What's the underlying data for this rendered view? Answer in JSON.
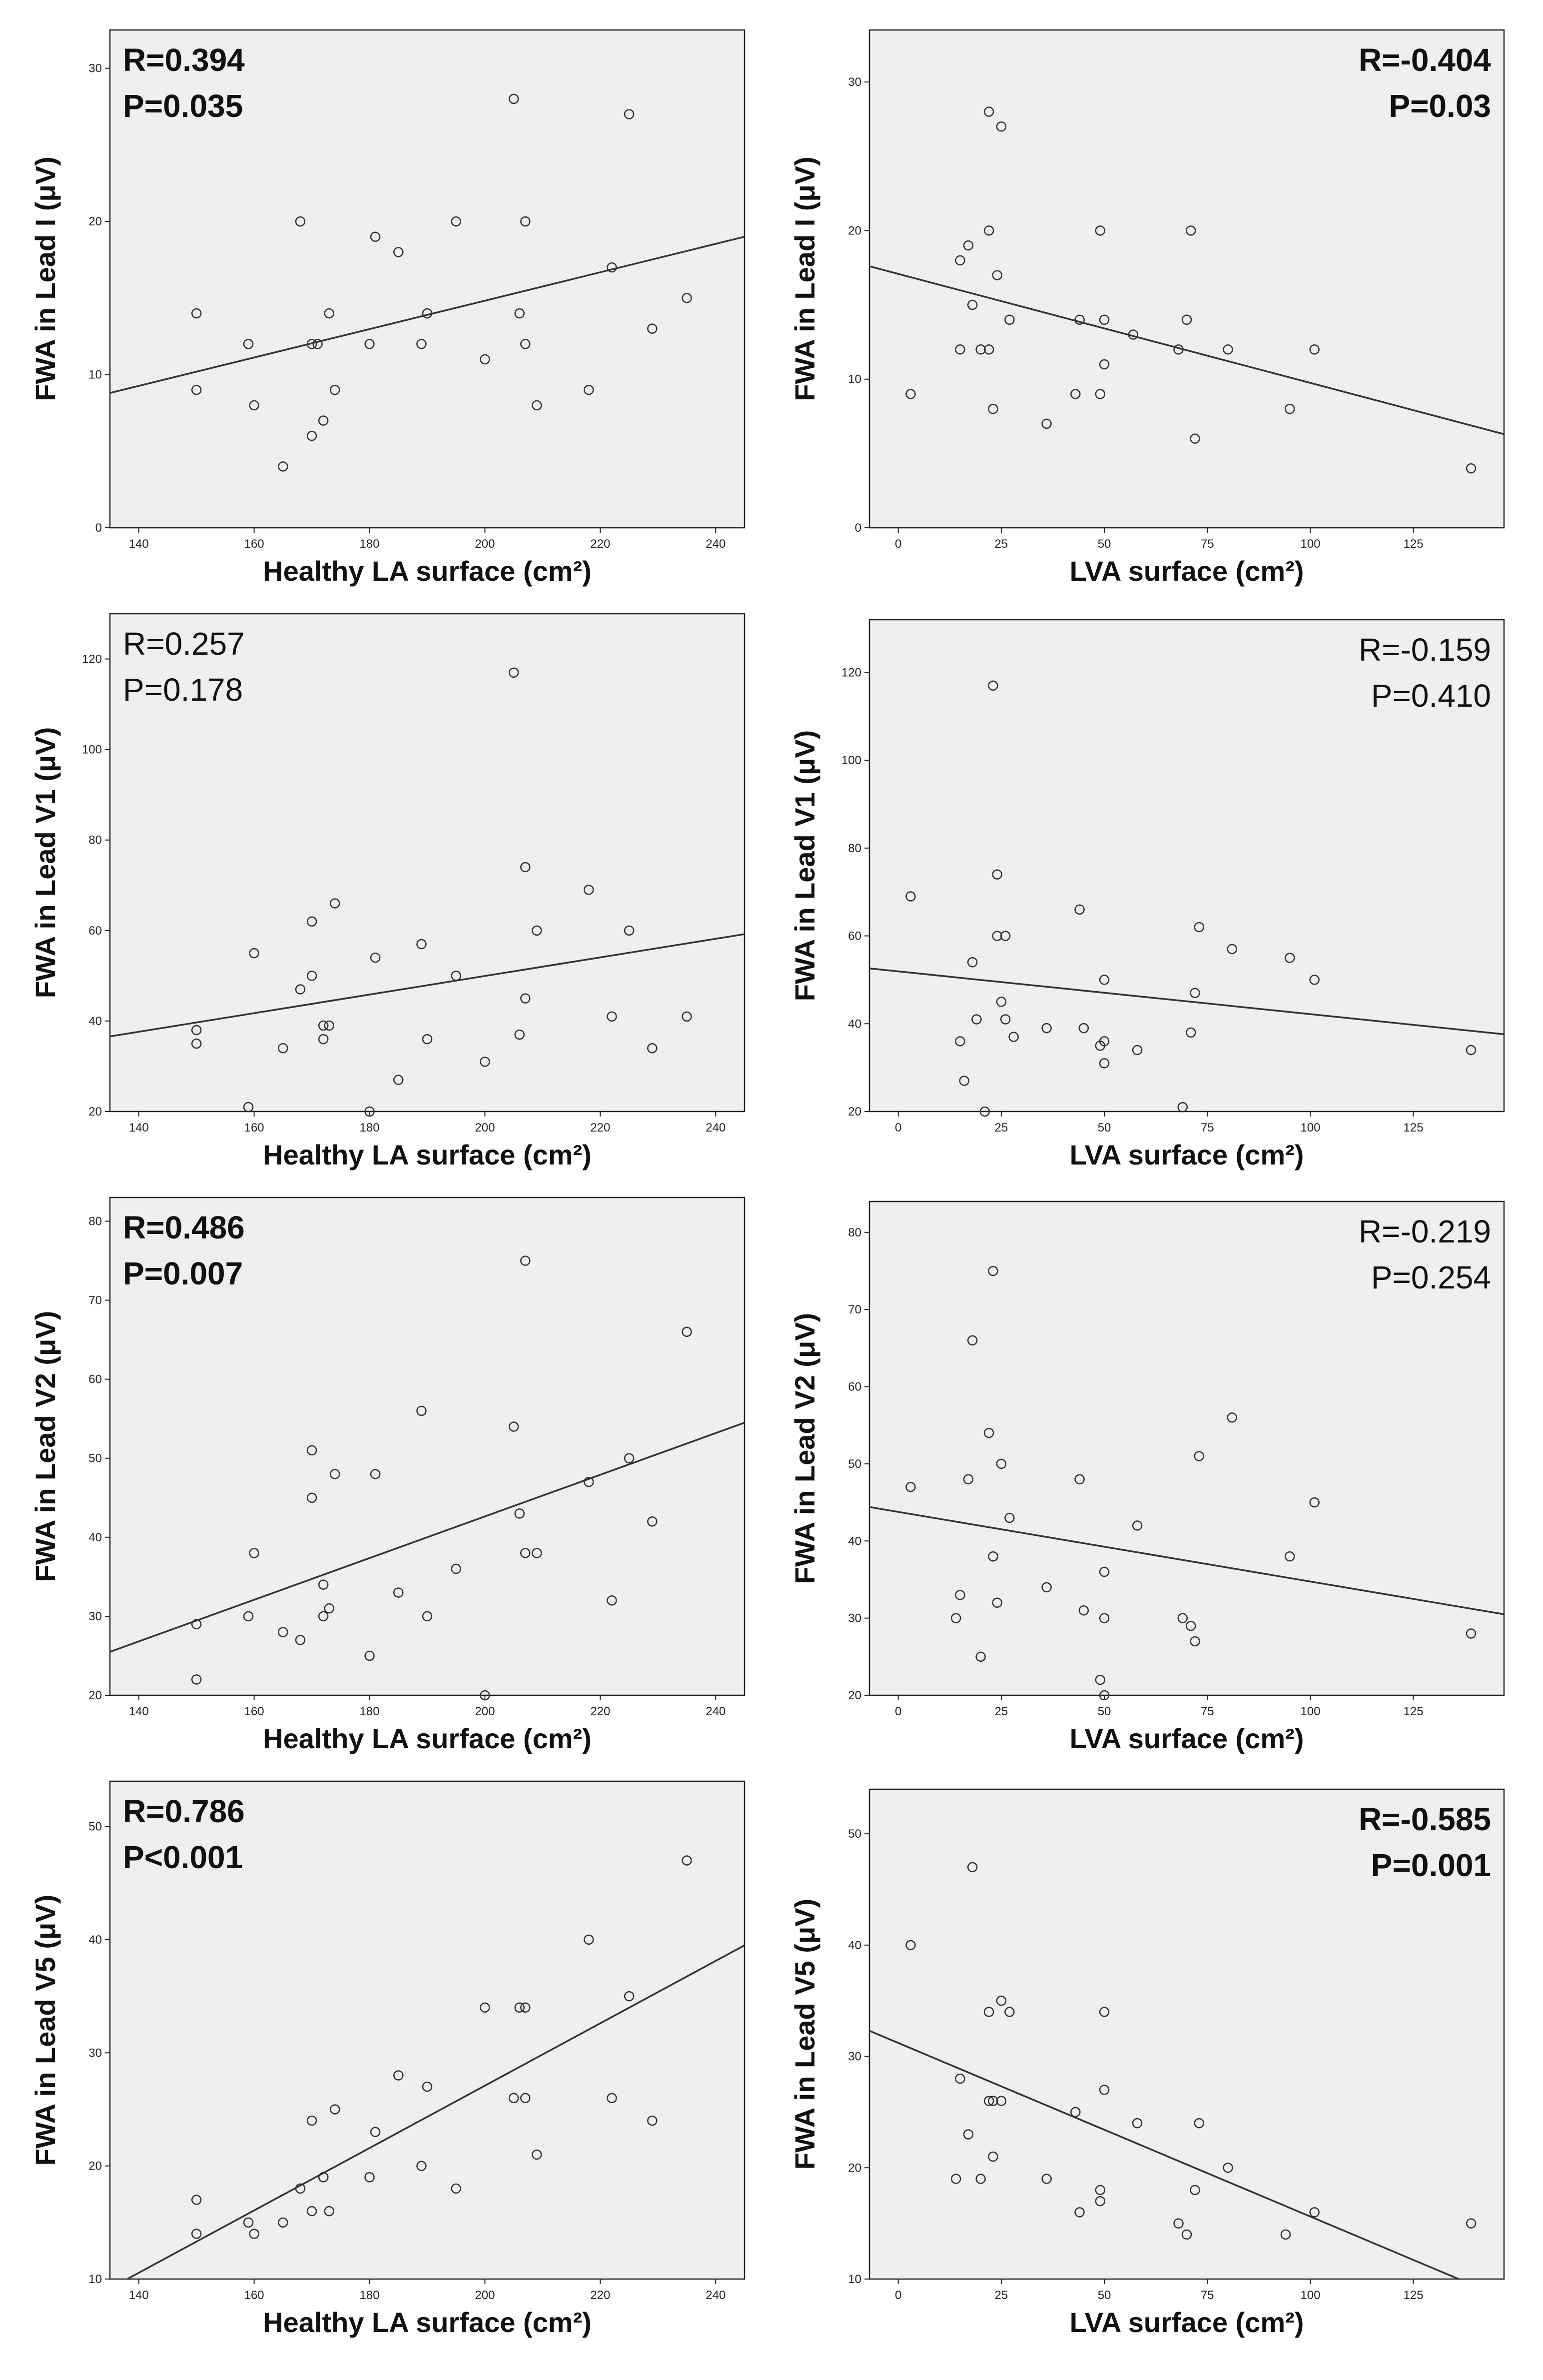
{
  "chart_data": [
    {
      "type": "scatter",
      "xlabel": "Healthy LA surface (cm²)",
      "ylabel": "FWA in Lead I (μV)",
      "stat": {
        "r": "R=0.394",
        "p": "P=0.035",
        "bold": true,
        "align": "left"
      },
      "xlim": [
        135,
        245
      ],
      "ylim": [
        0,
        32.5
      ],
      "xticks": [
        140,
        160,
        180,
        200,
        220,
        240
      ],
      "yticks": [
        0,
        10,
        20,
        30
      ],
      "fit": [
        [
          135,
          8.8
        ],
        [
          245,
          19
        ]
      ],
      "points": [
        [
          150,
          14
        ],
        [
          150,
          9
        ],
        [
          159,
          12
        ],
        [
          160,
          8
        ],
        [
          165,
          4
        ],
        [
          168,
          20
        ],
        [
          170,
          12
        ],
        [
          170,
          6
        ],
        [
          171,
          12
        ],
        [
          172,
          7
        ],
        [
          173,
          14
        ],
        [
          174,
          9
        ],
        [
          180,
          12
        ],
        [
          181,
          19
        ],
        [
          185,
          18
        ],
        [
          189,
          12
        ],
        [
          190,
          14
        ],
        [
          195,
          20
        ],
        [
          200,
          11
        ],
        [
          205,
          28
        ],
        [
          206,
          14
        ],
        [
          207,
          20
        ],
        [
          207,
          12
        ],
        [
          209,
          8
        ],
        [
          218,
          9
        ],
        [
          222,
          17
        ],
        [
          225,
          27
        ],
        [
          229,
          13
        ],
        [
          235,
          15
        ]
      ]
    },
    {
      "type": "scatter",
      "xlabel": "LVA surface (cm²)",
      "ylabel": "FWA in Lead I (μV)",
      "stat": {
        "r": "R=-0.404",
        "p": "P=0.03",
        "bold": true,
        "align": "right"
      },
      "xlim": [
        -7,
        147
      ],
      "ylim": [
        0,
        33.5
      ],
      "xticks": [
        0,
        25,
        50,
        75,
        100,
        125
      ],
      "yticks": [
        0,
        10,
        20,
        30
      ],
      "fit": [
        [
          -7,
          17.6
        ],
        [
          147,
          6.3
        ]
      ],
      "points": [
        [
          3,
          9
        ],
        [
          15,
          18
        ],
        [
          15,
          12
        ],
        [
          17,
          19
        ],
        [
          18,
          15
        ],
        [
          20,
          12
        ],
        [
          22,
          28
        ],
        [
          22,
          20
        ],
        [
          22,
          12
        ],
        [
          23,
          8
        ],
        [
          24,
          17
        ],
        [
          25,
          27
        ],
        [
          27,
          14
        ],
        [
          36,
          7
        ],
        [
          43,
          9
        ],
        [
          44,
          14
        ],
        [
          49,
          20
        ],
        [
          49,
          9
        ],
        [
          50,
          14
        ],
        [
          50,
          11
        ],
        [
          57,
          13
        ],
        [
          68,
          12
        ],
        [
          70,
          14
        ],
        [
          71,
          20
        ],
        [
          72,
          6
        ],
        [
          80,
          12
        ],
        [
          95,
          8
        ],
        [
          101,
          12
        ],
        [
          139,
          4
        ]
      ]
    },
    {
      "type": "scatter",
      "xlabel": "Healthy LA surface (cm²)",
      "ylabel": "FWA in Lead V1 (μV)",
      "stat": {
        "r": "R=0.257",
        "p": "P=0.178",
        "bold": false,
        "align": "left"
      },
      "xlim": [
        135,
        245
      ],
      "ylim": [
        20,
        130
      ],
      "xticks": [
        140,
        160,
        180,
        200,
        220,
        240
      ],
      "yticks": [
        20,
        40,
        60,
        80,
        100,
        120
      ],
      "fit": [
        [
          135,
          36.6
        ],
        [
          245,
          59.2
        ]
      ],
      "points": [
        [
          150,
          38
        ],
        [
          150,
          35
        ],
        [
          159,
          21
        ],
        [
          160,
          55
        ],
        [
          165,
          34
        ],
        [
          168,
          47
        ],
        [
          170,
          62
        ],
        [
          170,
          50
        ],
        [
          172,
          36
        ],
        [
          172,
          39
        ],
        [
          173,
          39
        ],
        [
          174,
          66
        ],
        [
          180,
          20
        ],
        [
          181,
          54
        ],
        [
          185,
          27
        ],
        [
          189,
          57
        ],
        [
          190,
          36
        ],
        [
          195,
          50
        ],
        [
          200,
          31
        ],
        [
          205,
          117
        ],
        [
          206,
          37
        ],
        [
          207,
          74
        ],
        [
          207,
          45
        ],
        [
          209,
          60
        ],
        [
          218,
          69
        ],
        [
          222,
          41
        ],
        [
          225,
          60
        ],
        [
          229,
          34
        ],
        [
          235,
          41
        ]
      ]
    },
    {
      "type": "scatter",
      "xlabel": "LVA surface (cm²)",
      "ylabel": "FWA in Lead V1 (μV)",
      "stat": {
        "r": "R=-0.159",
        "p": "P=0.410",
        "bold": false,
        "align": "right"
      },
      "xlim": [
        -7,
        147
      ],
      "ylim": [
        20,
        132
      ],
      "xticks": [
        0,
        25,
        50,
        75,
        100,
        125
      ],
      "yticks": [
        20,
        40,
        60,
        80,
        100,
        120
      ],
      "fit": [
        [
          -7,
          52.6
        ],
        [
          147,
          37.6
        ]
      ],
      "points": [
        [
          3,
          69
        ],
        [
          15,
          36
        ],
        [
          16,
          27
        ],
        [
          18,
          54
        ],
        [
          19,
          41
        ],
        [
          21,
          20
        ],
        [
          23,
          117
        ],
        [
          24,
          74
        ],
        [
          24,
          60
        ],
        [
          25,
          45
        ],
        [
          26,
          60
        ],
        [
          26,
          41
        ],
        [
          28,
          37
        ],
        [
          36,
          39
        ],
        [
          44,
          66
        ],
        [
          45,
          39
        ],
        [
          49,
          35
        ],
        [
          50,
          50
        ],
        [
          50,
          36
        ],
        [
          50,
          31
        ],
        [
          58,
          34
        ],
        [
          69,
          21
        ],
        [
          71,
          38
        ],
        [
          72,
          47
        ],
        [
          73,
          62
        ],
        [
          81,
          57
        ],
        [
          95,
          55
        ],
        [
          101,
          50
        ],
        [
          139,
          34
        ]
      ]
    },
    {
      "type": "scatter",
      "xlabel": "Healthy LA surface (cm²)",
      "ylabel": "FWA in Lead V2 (μV)",
      "stat": {
        "r": "R=0.486",
        "p": "P=0.007",
        "bold": true,
        "align": "left"
      },
      "xlim": [
        135,
        245
      ],
      "ylim": [
        20,
        83
      ],
      "xticks": [
        140,
        160,
        180,
        200,
        220,
        240
      ],
      "yticks": [
        20,
        30,
        40,
        50,
        60,
        70,
        80
      ],
      "fit": [
        [
          135,
          25.5
        ],
        [
          245,
          54.5
        ]
      ],
      "points": [
        [
          150,
          29
        ],
        [
          150,
          22
        ],
        [
          159,
          30
        ],
        [
          160,
          38
        ],
        [
          165,
          28
        ],
        [
          168,
          27
        ],
        [
          170,
          51
        ],
        [
          170,
          45
        ],
        [
          172,
          30
        ],
        [
          172,
          34
        ],
        [
          173,
          31
        ],
        [
          174,
          48
        ],
        [
          180,
          25
        ],
        [
          181,
          48
        ],
        [
          185,
          33
        ],
        [
          189,
          56
        ],
        [
          190,
          30
        ],
        [
          195,
          36
        ],
        [
          200,
          20
        ],
        [
          205,
          54
        ],
        [
          206,
          43
        ],
        [
          207,
          75
        ],
        [
          207,
          38
        ],
        [
          209,
          38
        ],
        [
          218,
          47
        ],
        [
          222,
          32
        ],
        [
          225,
          50
        ],
        [
          229,
          42
        ],
        [
          235,
          66
        ]
      ]
    },
    {
      "type": "scatter",
      "xlabel": "LVA surface (cm²)",
      "ylabel": "FWA in Lead V2 (μV)",
      "stat": {
        "r": "R=-0.219",
        "p": "P=0.254",
        "bold": false,
        "align": "right"
      },
      "xlim": [
        -7,
        147
      ],
      "ylim": [
        20,
        84
      ],
      "xticks": [
        0,
        25,
        50,
        75,
        100,
        125
      ],
      "yticks": [
        20,
        30,
        40,
        50,
        60,
        70,
        80
      ],
      "fit": [
        [
          -7,
          44.4
        ],
        [
          147,
          30.5
        ]
      ],
      "points": [
        [
          3,
          47
        ],
        [
          14,
          30
        ],
        [
          15,
          33
        ],
        [
          17,
          48
        ],
        [
          18,
          66
        ],
        [
          20,
          25
        ],
        [
          22,
          54
        ],
        [
          23,
          75
        ],
        [
          23,
          38
        ],
        [
          23,
          38
        ],
        [
          24,
          32
        ],
        [
          25,
          50
        ],
        [
          27,
          43
        ],
        [
          36,
          34
        ],
        [
          44,
          48
        ],
        [
          45,
          31
        ],
        [
          49,
          22
        ],
        [
          50,
          36
        ],
        [
          50,
          30
        ],
        [
          50,
          20
        ],
        [
          58,
          42
        ],
        [
          69,
          30
        ],
        [
          71,
          29
        ],
        [
          72,
          27
        ],
        [
          73,
          51
        ],
        [
          81,
          56
        ],
        [
          95,
          38
        ],
        [
          101,
          45
        ],
        [
          139,
          28
        ]
      ]
    },
    {
      "type": "scatter",
      "xlabel": "Healthy LA surface (cm²)",
      "ylabel": "FWA in Lead V5 (μV)",
      "stat": {
        "r": "R=0.786",
        "p": "P<0.001",
        "bold": true,
        "align": "left"
      },
      "xlim": [
        135,
        245
      ],
      "ylim": [
        10,
        54
      ],
      "xticks": [
        140,
        160,
        180,
        200,
        220,
        240
      ],
      "yticks": [
        10,
        20,
        30,
        40,
        50
      ],
      "fit": [
        [
          138,
          10
        ],
        [
          245,
          39.5
        ]
      ],
      "points": [
        [
          150,
          17
        ],
        [
          150,
          14
        ],
        [
          159,
          15
        ],
        [
          160,
          14
        ],
        [
          165,
          15
        ],
        [
          168,
          18
        ],
        [
          170,
          24
        ],
        [
          170,
          16
        ],
        [
          172,
          19
        ],
        [
          172,
          19
        ],
        [
          173,
          16
        ],
        [
          174,
          25
        ],
        [
          180,
          19
        ],
        [
          181,
          23
        ],
        [
          185,
          28
        ],
        [
          189,
          20
        ],
        [
          190,
          27
        ],
        [
          195,
          18
        ],
        [
          200,
          34
        ],
        [
          205,
          26
        ],
        [
          206,
          34
        ],
        [
          207,
          34
        ],
        [
          207,
          26
        ],
        [
          209,
          21
        ],
        [
          218,
          40
        ],
        [
          222,
          26
        ],
        [
          225,
          35
        ],
        [
          229,
          24
        ],
        [
          235,
          47
        ]
      ]
    },
    {
      "type": "scatter",
      "xlabel": "LVA surface (cm²)",
      "ylabel": "FWA in Lead V5 (μV)",
      "stat": {
        "r": "R=-0.585",
        "p": "P=0.001",
        "bold": true,
        "align": "right"
      },
      "xlim": [
        -7,
        147
      ],
      "ylim": [
        10,
        54
      ],
      "xticks": [
        0,
        25,
        50,
        75,
        100,
        125
      ],
      "yticks": [
        10,
        20,
        30,
        40,
        50
      ],
      "fit": [
        [
          -7,
          32.3
        ],
        [
          136,
          10
        ]
      ],
      "points": [
        [
          3,
          40
        ],
        [
          14,
          19
        ],
        [
          15,
          28
        ],
        [
          17,
          23
        ],
        [
          18,
          47
        ],
        [
          20,
          19
        ],
        [
          22,
          34
        ],
        [
          22,
          26
        ],
        [
          23,
          21
        ],
        [
          23,
          26
        ],
        [
          25,
          26
        ],
        [
          25,
          35
        ],
        [
          27,
          34
        ],
        [
          36,
          19
        ],
        [
          43,
          25
        ],
        [
          44,
          16
        ],
        [
          49,
          18
        ],
        [
          49,
          17
        ],
        [
          50,
          34
        ],
        [
          50,
          27
        ],
        [
          58,
          24
        ],
        [
          68,
          15
        ],
        [
          70,
          14
        ],
        [
          72,
          18
        ],
        [
          73,
          24
        ],
        [
          80,
          20
        ],
        [
          94,
          14
        ],
        [
          101,
          16
        ],
        [
          139,
          15
        ]
      ]
    }
  ]
}
